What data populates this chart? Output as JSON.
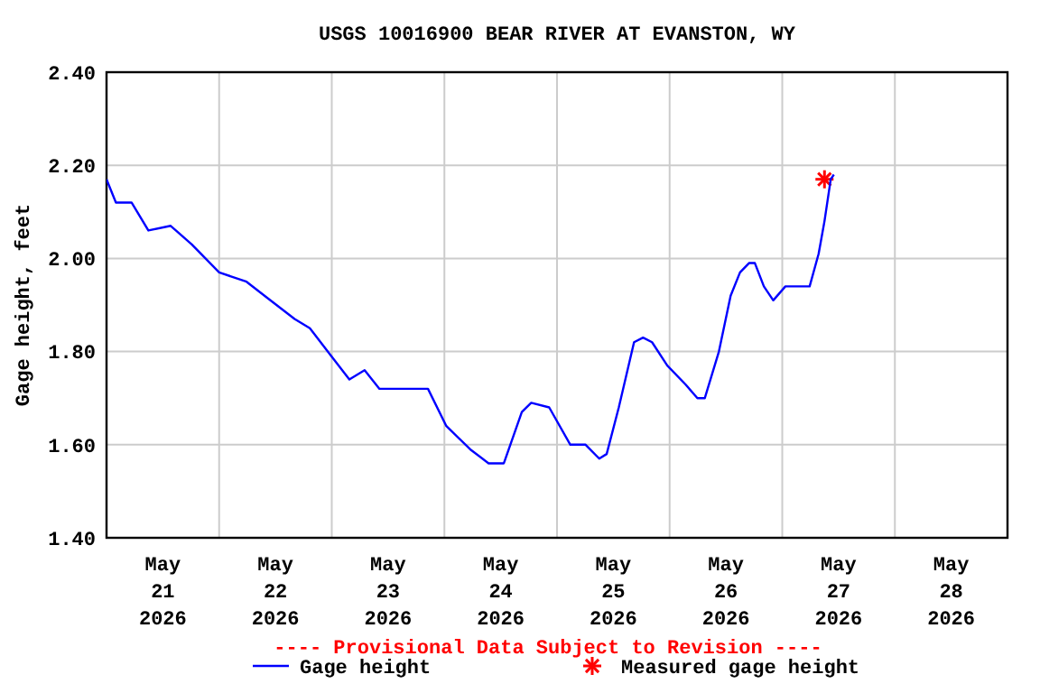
{
  "chart_data": {
    "type": "line",
    "title": "USGS 10016900 BEAR RIVER AT EVANSTON, WY",
    "ylabel": "Gage height, feet",
    "annotations": [
      "---- Provisional Data Subject to Revision ----"
    ],
    "xlim": [
      "2026-05-21T00:00",
      "2026-05-29T00:00"
    ],
    "xticks": [
      {
        "value": "2026-05-21T12:00",
        "label": "May\n21\n2026"
      },
      {
        "value": "2026-05-22T00:00",
        "label": null
      },
      {
        "value": "2026-05-22T12:00",
        "label": "May\n22\n2026"
      },
      {
        "value": "2026-05-23T00:00",
        "label": null
      },
      {
        "value": "2026-05-23T12:00",
        "label": "May\n23\n2026"
      },
      {
        "value": "2026-05-24T00:00",
        "label": null
      },
      {
        "value": "2026-05-24T12:00",
        "label": "May\n24\n2026"
      },
      {
        "value": "2026-05-25T00:00",
        "label": null
      },
      {
        "value": "2026-05-25T12:00",
        "label": "May\n25\n2026"
      },
      {
        "value": "2026-05-26T00:00",
        "label": null
      },
      {
        "value": "2026-05-26T12:00",
        "label": "May\n26\n2026"
      },
      {
        "value": "2026-05-27T00:00",
        "label": null
      },
      {
        "value": "2026-05-27T12:00",
        "label": "May\n27\n2026"
      },
      {
        "value": "2026-05-28T00:00",
        "label": null
      },
      {
        "value": "2026-05-28T12:00",
        "label": "May\n28\n2026"
      }
    ],
    "ylim": [
      1.4,
      2.4
    ],
    "yticks": [
      {
        "value": 1.4,
        "label": "1.40"
      },
      {
        "value": 1.6,
        "label": "1.60"
      },
      {
        "value": 1.8,
        "label": "1.80"
      },
      {
        "value": 2.0,
        "label": "2.00"
      },
      {
        "value": 2.2,
        "label": "2.20"
      },
      {
        "value": 2.4,
        "label": "2.40"
      }
    ],
    "grid": true,
    "legend": "bottom",
    "series": [
      {
        "name": "Gage height",
        "color": "#0000ff",
        "marker": "none",
        "line_style": "solid",
        "x": [
          "2026-05-21T00:00",
          "2026-05-21T02:00",
          "2026-05-21T05:20",
          "2026-05-21T08:55",
          "2026-05-21T13:40",
          "2026-05-21T18:10",
          "2026-05-22T00:00",
          "2026-05-22T05:50",
          "2026-05-22T09:40",
          "2026-05-22T16:05",
          "2026-05-22T19:20",
          "2026-05-22T23:55",
          "2026-05-23T03:45",
          "2026-05-23T07:00",
          "2026-05-23T10:10",
          "2026-05-23T20:30",
          "2026-05-24T00:25",
          "2026-05-24T05:30",
          "2026-05-24T09:25",
          "2026-05-24T12:40",
          "2026-05-24T16:30",
          "2026-05-24T18:30",
          "2026-05-24T22:20",
          "2026-05-25T02:50",
          "2026-05-25T06:05",
          "2026-05-25T09:00",
          "2026-05-25T10:35",
          "2026-05-25T13:10",
          "2026-05-25T16:25",
          "2026-05-25T18:20",
          "2026-05-25T20:15",
          "2026-05-25T23:30",
          "2026-05-26T03:20",
          "2026-05-26T05:55",
          "2026-05-26T07:30",
          "2026-05-26T10:30",
          "2026-05-26T13:00",
          "2026-05-26T15:00",
          "2026-05-26T16:55",
          "2026-05-26T18:10",
          "2026-05-26T20:05",
          "2026-05-26T22:05",
          "2026-05-27T00:40",
          "2026-05-27T05:50",
          "2026-05-27T07:45",
          "2026-05-27T09:00",
          "2026-05-27T10:20",
          "2026-05-27T11:00"
        ],
        "values": [
          2.17,
          2.12,
          2.12,
          2.06,
          2.07,
          2.03,
          1.97,
          1.95,
          1.92,
          1.87,
          1.85,
          1.79,
          1.74,
          1.76,
          1.72,
          1.72,
          1.64,
          1.59,
          1.56,
          1.56,
          1.67,
          1.69,
          1.68,
          1.6,
          1.6,
          1.57,
          1.58,
          1.68,
          1.82,
          1.83,
          1.82,
          1.77,
          1.73,
          1.7,
          1.7,
          1.8,
          1.92,
          1.97,
          1.99,
          1.99,
          1.94,
          1.91,
          1.94,
          1.94,
          2.01,
          2.08,
          2.17,
          2.18
        ]
      },
      {
        "name": "Measured gage height",
        "color": "#ff0000",
        "type": "scatter",
        "marker": "cross",
        "x": [
          "2026-05-27T09:00"
        ],
        "values": [
          2.17
        ]
      }
    ]
  }
}
